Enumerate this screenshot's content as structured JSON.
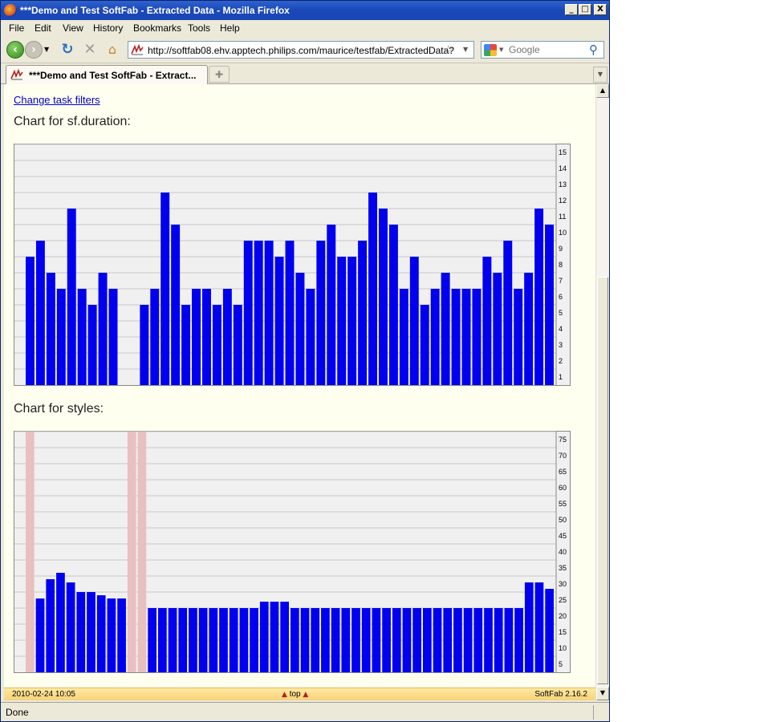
{
  "window": {
    "title": "***Demo and Test SoftFab - Extracted Data - Mozilla Firefox",
    "controls": {
      "minimize": "_",
      "maximize": "□",
      "close": "X"
    }
  },
  "menu": {
    "items": [
      {
        "label": "File"
      },
      {
        "label": "Edit"
      },
      {
        "label": "View"
      },
      {
        "label": "History"
      },
      {
        "label": "Bookmarks"
      },
      {
        "label": "Tools"
      },
      {
        "label": "Help"
      }
    ]
  },
  "nav": {
    "url": "http://softfab08.ehv.apptech.philips.com/maurice/testfab/ExtractedData?",
    "search_placeholder": "Google"
  },
  "tabs": [
    {
      "label": "***Demo and Test SoftFab - Extract..."
    }
  ],
  "page": {
    "change_filters": "Change task filters",
    "charts": [
      {
        "title": "Chart for sf.duration:"
      },
      {
        "title": "Chart for styles:"
      }
    ]
  },
  "chart_data": [
    {
      "type": "bar",
      "title": "Chart for sf.duration:",
      "color": "#0000ee",
      "ylim": [
        0,
        15
      ],
      "yticks": [
        "1",
        "2",
        "3",
        "4",
        "5",
        "6",
        "7",
        "8",
        "9",
        "10",
        "11",
        "12",
        "13",
        "14",
        "15"
      ],
      "values": [
        8,
        9,
        7,
        6,
        11,
        6,
        5,
        7,
        6,
        0,
        0,
        5,
        6,
        12,
        10,
        5,
        6,
        6,
        5,
        6,
        5,
        9,
        9,
        9,
        8,
        9,
        7,
        6,
        9,
        10,
        8,
        8,
        9,
        12,
        11,
        10,
        6,
        8,
        5,
        6,
        7,
        6,
        6,
        6,
        8,
        7,
        9,
        6,
        7,
        11,
        10
      ],
      "grid": true,
      "axis_side": "right"
    },
    {
      "type": "bar",
      "title": "Chart for styles:",
      "color": "#0000ee",
      "missing_color": "#e8c0c0",
      "ylim": [
        0,
        75
      ],
      "yticks": [
        "5",
        "10",
        "15",
        "20",
        "25",
        "30",
        "35",
        "40",
        "45",
        "50",
        "55",
        "60",
        "65",
        "70",
        "75"
      ],
      "values": [
        null,
        23,
        29,
        31,
        28,
        25,
        25,
        24,
        23,
        23,
        null,
        null,
        20,
        20,
        20,
        20,
        20,
        20,
        20,
        20,
        20,
        20,
        20,
        22,
        22,
        22,
        20,
        20,
        20,
        20,
        20,
        20,
        20,
        20,
        20,
        20,
        20,
        20,
        20,
        20,
        20,
        20,
        20,
        20,
        20,
        20,
        20,
        20,
        20,
        28,
        28,
        26
      ],
      "grid": true,
      "axis_side": "right"
    }
  ],
  "footer": {
    "date": "2010-02-24 10:05",
    "top_link": "top",
    "version": "SoftFab 2.16.2"
  },
  "status": {
    "text": "Done"
  }
}
